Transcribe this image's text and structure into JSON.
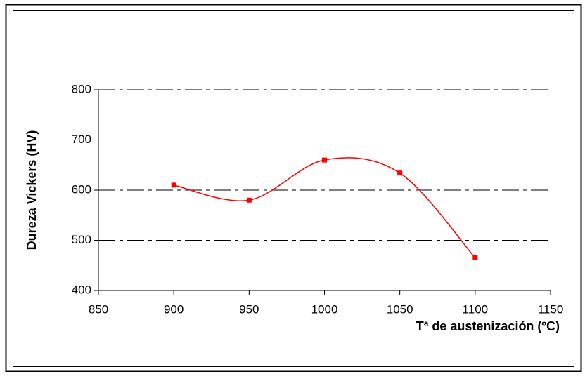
{
  "chart_data": {
    "type": "line",
    "x": [
      900,
      950,
      1000,
      1050,
      1100
    ],
    "series": [
      {
        "name": "Dureza",
        "color": "#ff0000",
        "values": [
          610,
          580,
          660,
          634,
          465
        ]
      }
    ],
    "xlim": [
      850,
      1150
    ],
    "xticks": [
      850,
      900,
      950,
      1000,
      1050,
      1100,
      1150
    ],
    "ylim": [
      400,
      800
    ],
    "yticks": [
      400,
      500,
      600,
      700,
      800
    ],
    "grid": true,
    "x_label": "Tª de austenización (ºC)",
    "y_label": "Dureza Vickers (HV)"
  }
}
